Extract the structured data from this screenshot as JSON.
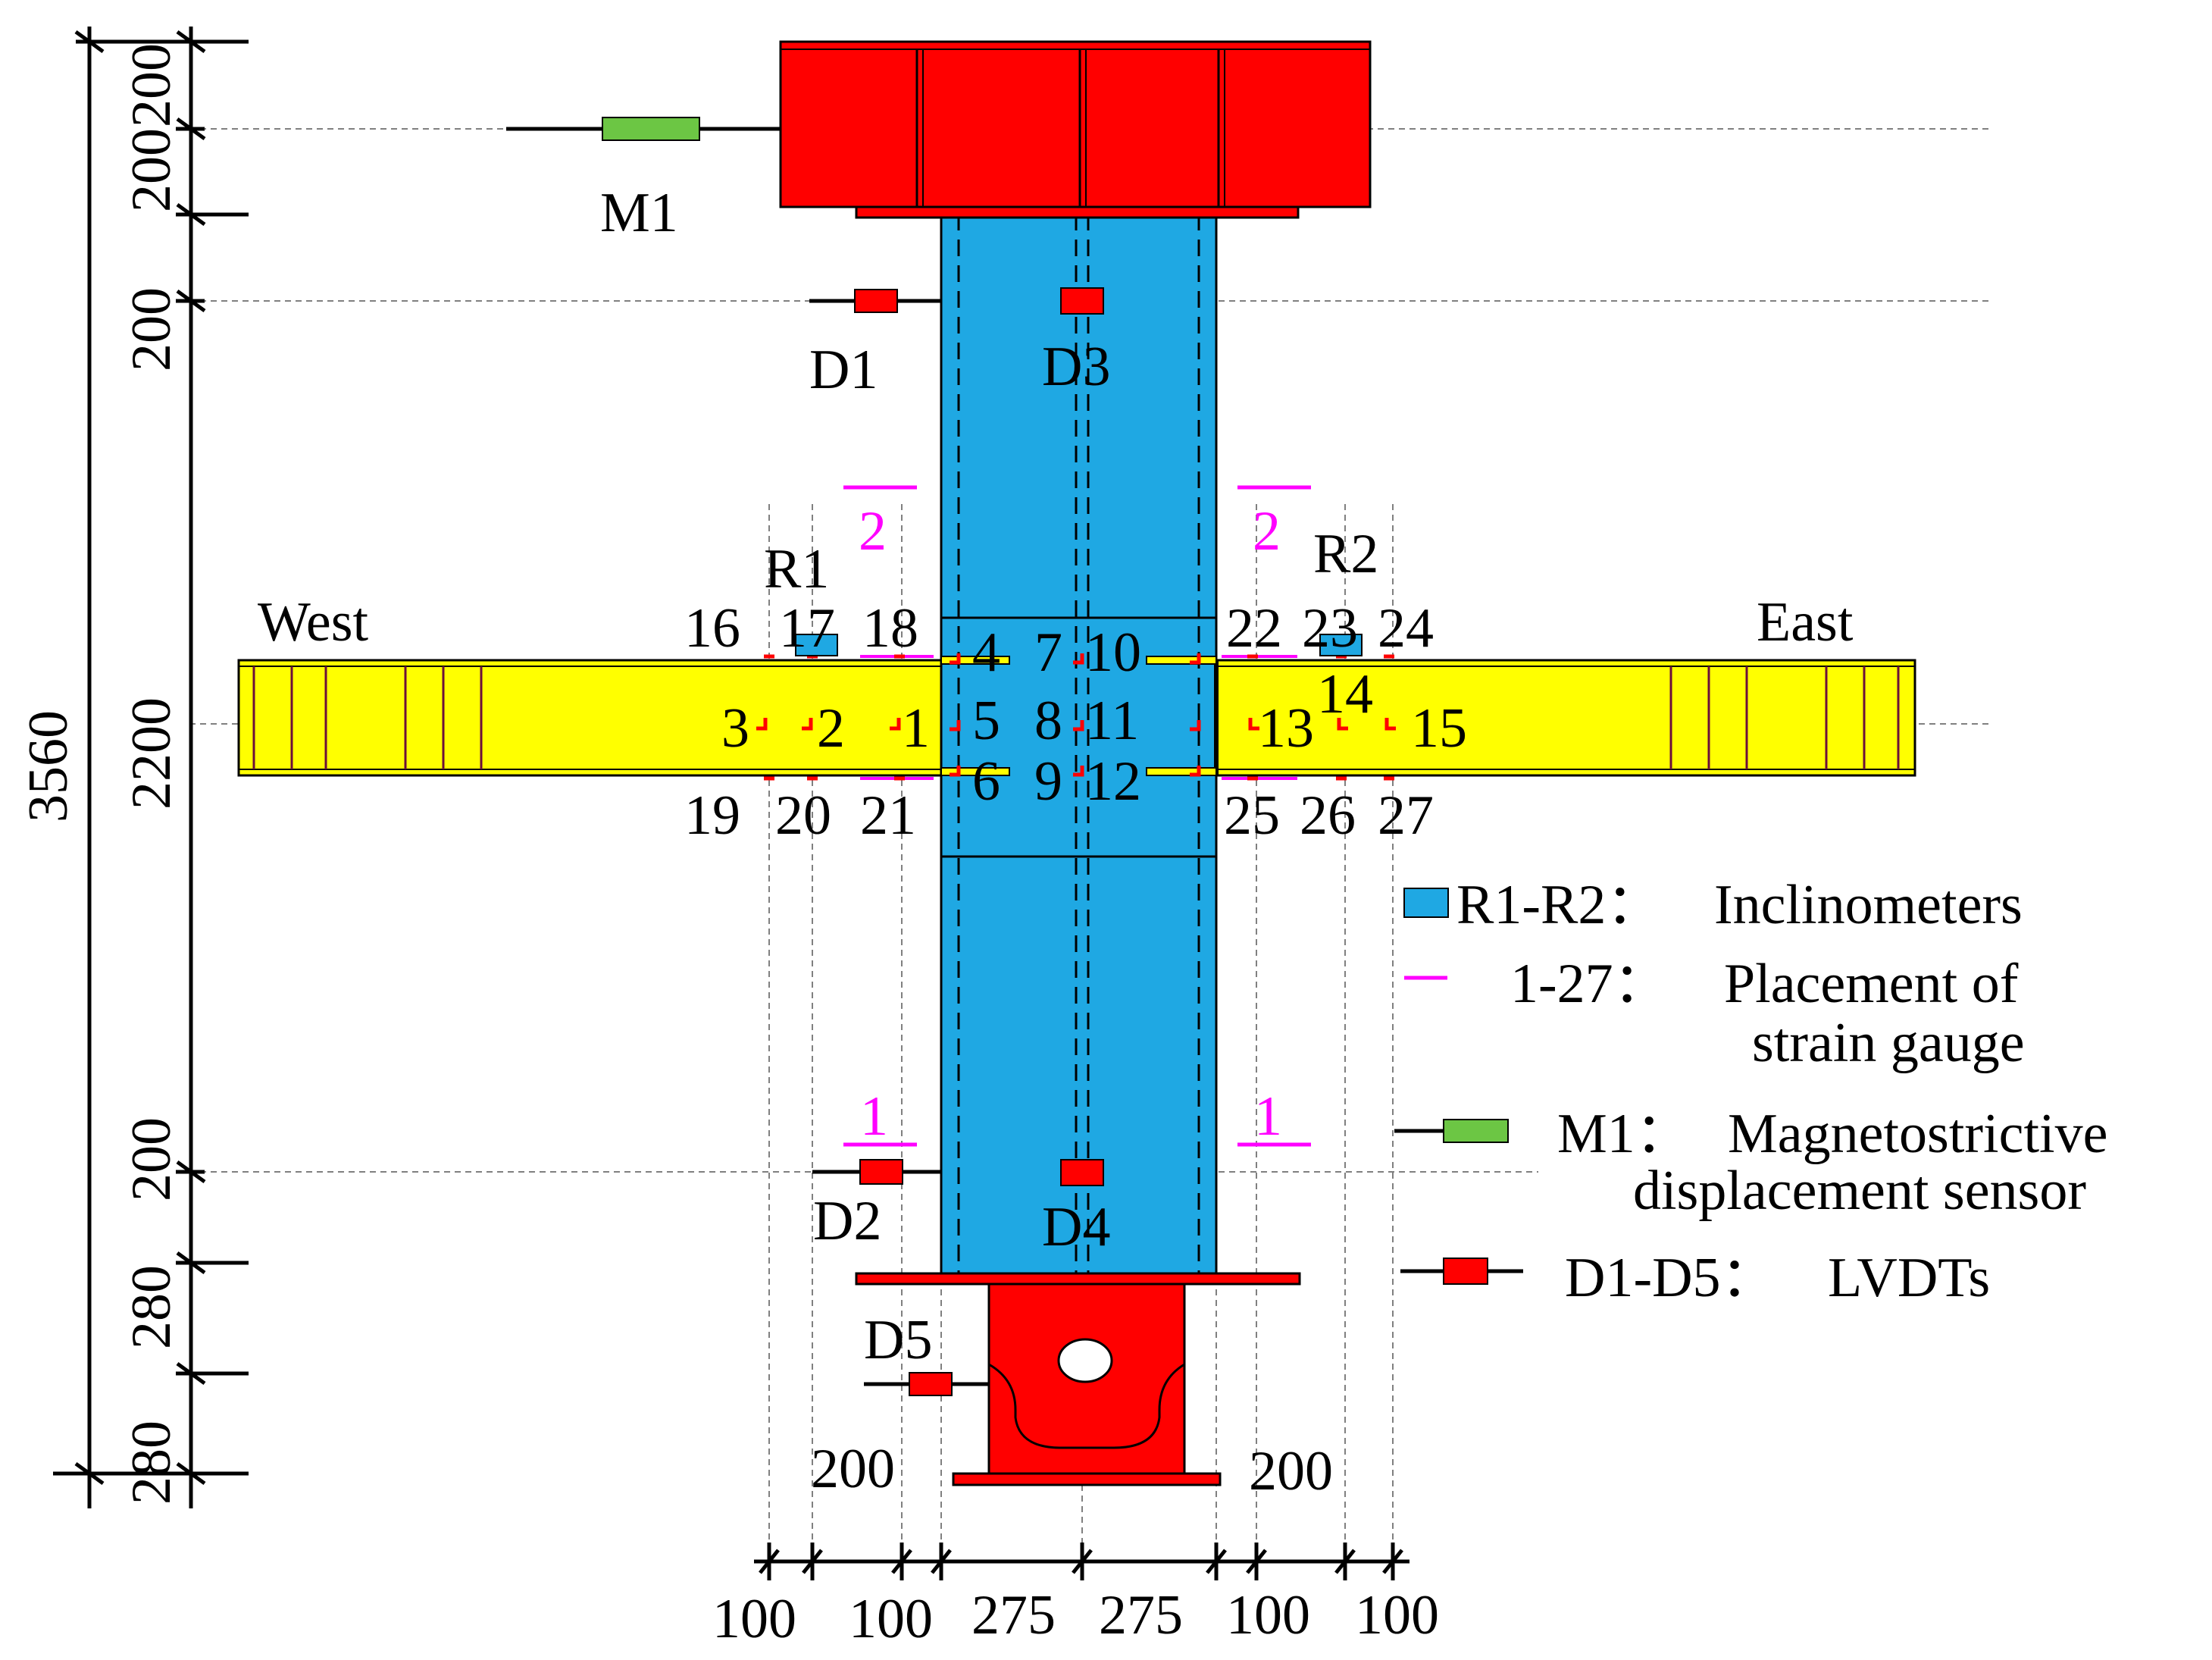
{
  "colors": {
    "column": "#1fa8e3",
    "beam": "#ffff00",
    "loading_block": "#ff0000",
    "lvdt": "#ff0000",
    "magnetostrictive_sensor": "#6cc644",
    "inclinometer": "#1fa8e3",
    "strain_gauge": "#ff00ff",
    "outline": "#000000",
    "guide_line": "#808080"
  },
  "labels": {
    "west": "West",
    "east": "East",
    "m1": "M1",
    "d1": "D1",
    "d2": "D2",
    "d3": "D3",
    "d4": "D4",
    "d5": "D5",
    "r1": "R1",
    "r2": "R2",
    "section_2_left": "2",
    "section_2_right": "2",
    "section_1_left": "1",
    "section_1_right": "1"
  },
  "strain_gauges": {
    "g1": "1",
    "g2": "2",
    "g3": "3",
    "g4": "4",
    "g5": "5",
    "g6": "6",
    "g7": "7",
    "g8": "8",
    "g9": "9",
    "g10": "10",
    "g11": "11",
    "g12": "12",
    "g13": "13",
    "g14": "14",
    "g15": "15",
    "g16": "16",
    "g17": "17",
    "g18": "18",
    "g19": "19",
    "g20": "20",
    "g21": "21",
    "g22": "22",
    "g23": "23",
    "g24": "24",
    "g25": "25",
    "g26": "26",
    "g27": "27"
  },
  "dimensions": {
    "vertical": {
      "total": "3560",
      "beam_zone": "2200",
      "top_1": "200",
      "top_2": "200",
      "top_3": "200",
      "bottom_1": "200",
      "bottom_2": "280",
      "bottom_3": "280"
    },
    "horizontal": {
      "west_1": "100",
      "west_2": "200",
      "west_3": "100",
      "col_left": "275",
      "col_right": "275",
      "east_1": "100",
      "east_2": "200",
      "east_3": "100"
    }
  },
  "legend": {
    "inclinometer": {
      "key": "R1-R2：",
      "text": "Inclinometers"
    },
    "strain": {
      "key": "1-27：",
      "text_line1": "Placement of",
      "text_line2": "strain gauge"
    },
    "magnetostrictive": {
      "key": "M1：",
      "text_line1": "Magnetostrictive",
      "text_line2": "displacement sensor"
    },
    "lvdt": {
      "key": "D1-D5：",
      "text": "LVDTs"
    }
  }
}
